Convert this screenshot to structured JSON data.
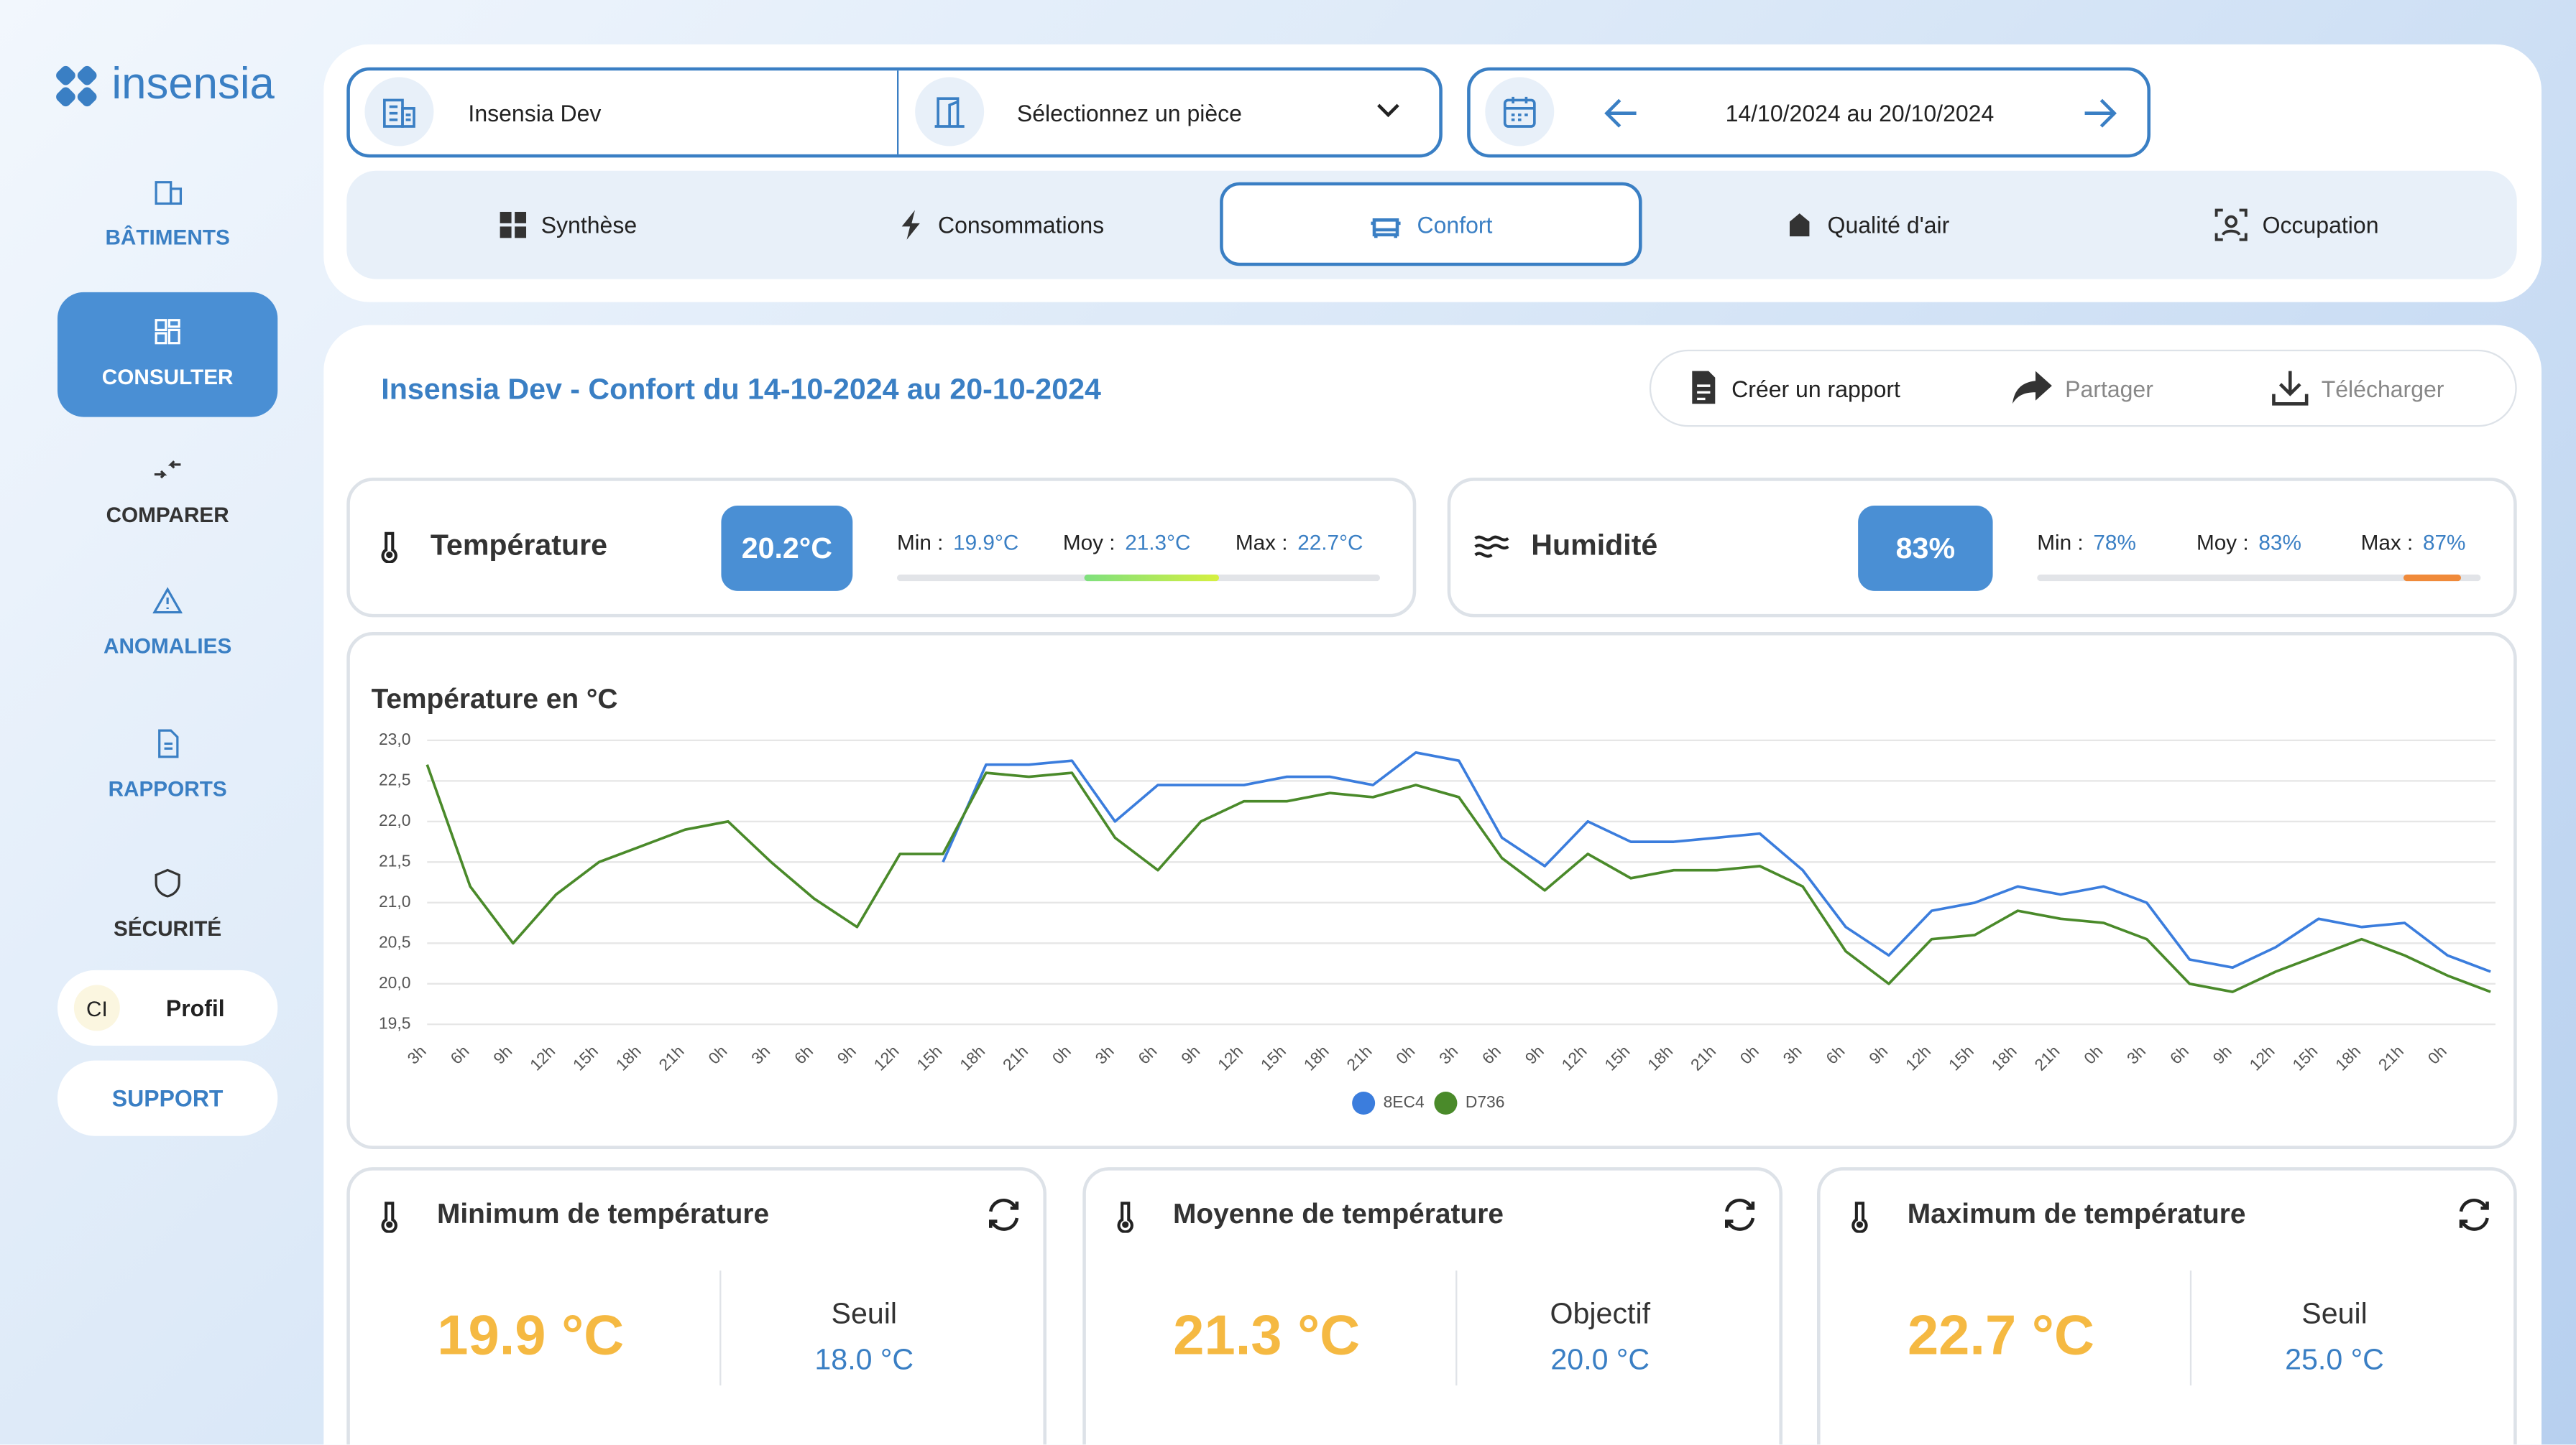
{
  "brand": "insensia",
  "nav": [
    "BÂTIMENTS",
    "CONSULTER",
    "COMPARER",
    "ANOMALIES",
    "RAPPORTS",
    "SÉCURITÉ"
  ],
  "profile": {
    "initials": "CI",
    "label": "Profil"
  },
  "support": "SUPPORT",
  "filters": {
    "building": "Insensia Dev",
    "room": "Sélectionnez un pièce",
    "period": "14/10/2024 au 20/10/2024"
  },
  "tabs": [
    "Synthèse",
    "Consommations",
    "Confort",
    "Qualité d'air",
    "Occupation"
  ],
  "report": {
    "title": "Insensia Dev - Confort du 14-10-2024 au 20-10-2024",
    "actions": [
      "Créer un rapport",
      "Partager",
      "Télécharger"
    ]
  },
  "summary": [
    {
      "name": "Température",
      "current": "20.2°C",
      "min_label": "Min :",
      "min": "19.9°C",
      "avg_label": "Moy :",
      "avg": "21.3°C",
      "max_label": "Max :",
      "max": "22.7°C"
    },
    {
      "name": "Humidité",
      "current": "83%",
      "min_label": "Min :",
      "min": "78%",
      "avg_label": "Moy :",
      "avg": "83%",
      "max_label": "Max :",
      "max": "87%"
    }
  ],
  "chart_data": {
    "type": "line",
    "title": "Température en °C",
    "categories": [
      "3h",
      "6h",
      "9h",
      "12h",
      "15h",
      "18h",
      "21h",
      "0h",
      "3h",
      "6h",
      "9h",
      "12h",
      "15h",
      "18h",
      "21h",
      "0h",
      "3h",
      "6h",
      "9h",
      "12h",
      "15h",
      "18h",
      "21h",
      "0h",
      "3h",
      "6h",
      "9h",
      "12h",
      "15h",
      "18h",
      "21h",
      "0h",
      "3h",
      "6h",
      "9h",
      "12h",
      "15h",
      "18h",
      "21h",
      "0h",
      "3h",
      "6h",
      "9h",
      "12h",
      "15h",
      "18h",
      "21h",
      "0h",
      null
    ],
    "series": [
      {
        "name": "8EC4",
        "color": "#3b7ddd",
        "values": [
          null,
          null,
          null,
          null,
          null,
          null,
          null,
          null,
          null,
          null,
          null,
          null,
          21.5,
          22.7,
          22.7,
          22.75,
          22.0,
          22.45,
          22.45,
          22.45,
          22.55,
          22.55,
          22.45,
          22.85,
          22.75,
          21.8,
          21.45,
          22.0,
          21.75,
          21.75,
          21.8,
          21.85,
          21.4,
          20.7,
          20.35,
          20.9,
          21.0,
          21.2,
          21.1,
          21.2,
          21.0,
          20.3,
          20.2,
          20.45,
          20.8,
          20.7,
          20.75,
          20.35,
          20.15
        ]
      },
      {
        "name": "D736",
        "color": "#4a8a2a",
        "values": [
          22.7,
          21.2,
          20.5,
          21.1,
          21.5,
          21.7,
          21.9,
          22.0,
          21.5,
          21.05,
          20.7,
          21.6,
          21.6,
          22.6,
          22.55,
          22.6,
          21.8,
          21.4,
          22.0,
          22.25,
          22.25,
          22.35,
          22.3,
          22.45,
          22.3,
          21.55,
          21.15,
          21.6,
          21.3,
          21.4,
          21.4,
          21.45,
          21.2,
          20.4,
          20.0,
          20.55,
          20.6,
          20.9,
          20.8,
          20.75,
          20.55,
          20.0,
          19.9,
          20.15,
          20.35,
          20.55,
          20.35,
          20.1,
          19.9
        ]
      }
    ],
    "ylim": [
      19.5,
      23.0
    ],
    "yticks": [
      {
        "value": 19.5,
        "label": "19,5"
      },
      {
        "value": 20.0,
        "label": "20,0"
      },
      {
        "value": 20.5,
        "label": "20,5"
      },
      {
        "value": 21.0,
        "label": "21,0"
      },
      {
        "value": 21.5,
        "label": "21,5"
      },
      {
        "value": 22.0,
        "label": "22,0"
      },
      {
        "value": 22.5,
        "label": "22,5"
      },
      {
        "value": 23.0,
        "label": "23,0"
      }
    ],
    "grid": true
  },
  "cards": [
    {
      "title": "Minimum de température",
      "value": "19.9 °C",
      "ref_label": "Seuil",
      "ref": "18.0 °C"
    },
    {
      "title": "Moyenne de température",
      "value": "21.3 °C",
      "ref_label": "Objectif",
      "ref": "20.0 °C"
    },
    {
      "title": "Maximum de température",
      "value": "22.7 °C",
      "ref_label": "Seuil",
      "ref": "25.0 °C"
    }
  ]
}
